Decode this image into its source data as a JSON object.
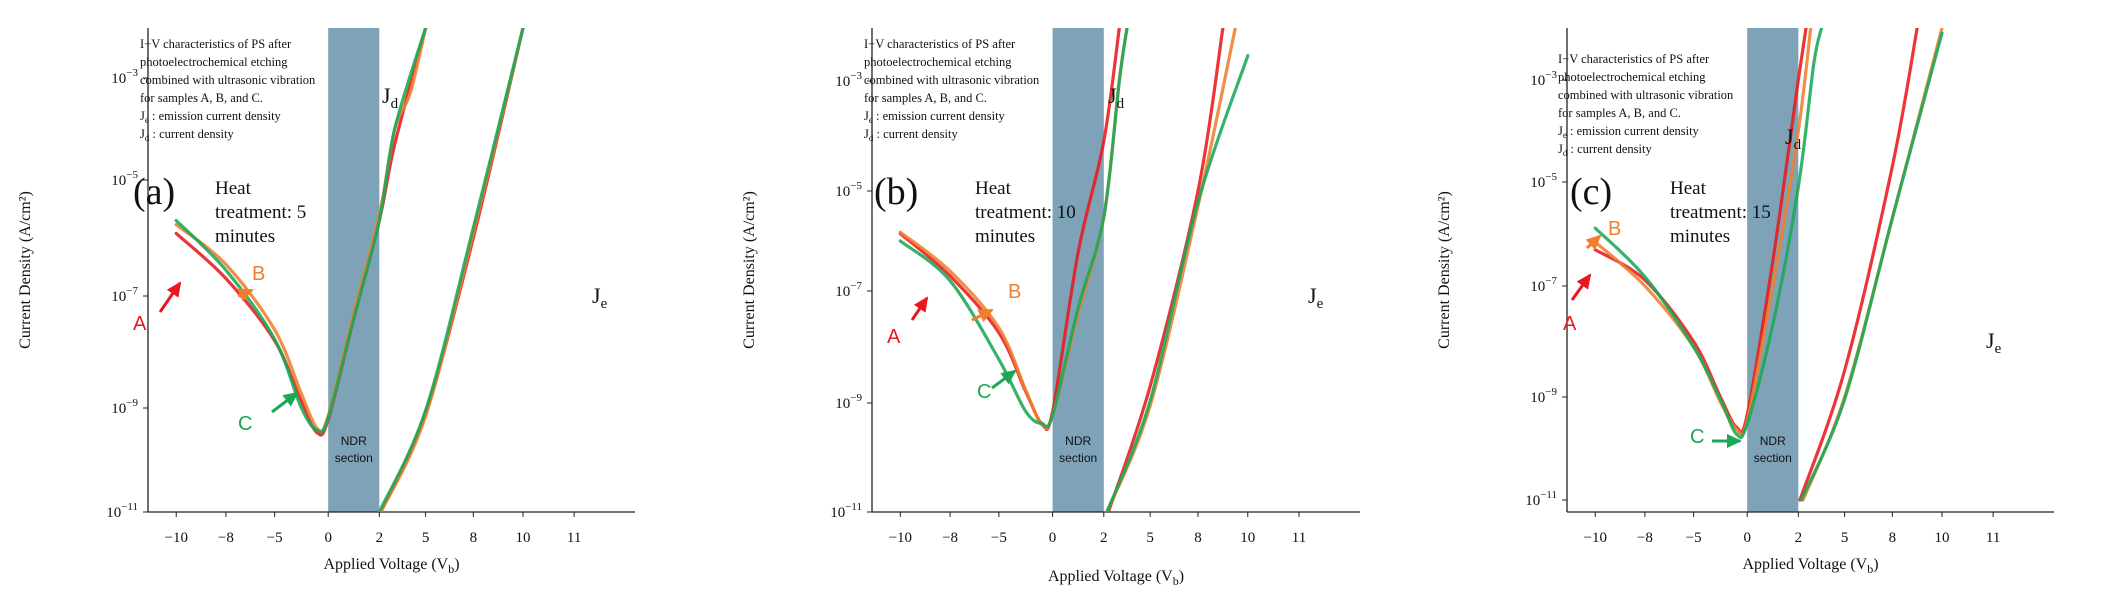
{
  "colors": {
    "A": "#e8191e",
    "B": "#ee7f2d",
    "C": "#1aa856",
    "ndr_fill": "#7ea3b9"
  },
  "shared": {
    "y_axis_title": "Current Density (A/cm²)",
    "x_axis_title_main": "Applied Voltage (V",
    "x_axis_title_sub": "b",
    "x_axis_title_close": ")",
    "y_tick_base": "10",
    "y_tick_exponents": [
      "−3",
      "−5",
      "−7",
      "−9",
      "−11"
    ],
    "x_ticks": [
      "−10",
      "−8",
      "−5",
      "0",
      "2",
      "5",
      "8",
      "10",
      "11"
    ],
    "ndr_line1": "NDR",
    "ndr_line2": "section",
    "jd_main": "J",
    "jd_sub": "d",
    "je_main": "J",
    "je_sub": "e",
    "description": [
      "I−V characteristics of PS after",
      "photoelectrochemical etching",
      "combined with ultrasonic vibration",
      "for samples A, B, and C."
    ],
    "desc_je_sub": "e",
    "desc_je_rest": " : emission current density",
    "desc_jd_sub": "d",
    "desc_jd_rest": " : current density",
    "desc_j": "J",
    "sample_labels": {
      "A": "A",
      "B": "B",
      "C": "C"
    }
  },
  "panels": [
    {
      "letter": "(a)",
      "heat": [
        "Heat",
        "treatment: 5",
        "minutes"
      ]
    },
    {
      "letter": "(b)",
      "heat": [
        "Heat",
        "treatment: 10",
        "minutes"
      ]
    },
    {
      "letter": "(c)",
      "heat": [
        "Heat",
        "treatment: 15",
        "minutes"
      ]
    }
  ],
  "chart_data": [
    {
      "type": "line",
      "title": "Heat treatment: 5 minutes",
      "panel": "(a)",
      "xlabel": "Applied Voltage (Vb)",
      "ylabel": "Current Density (A/cm²)",
      "yscale": "log",
      "ylim": [
        1e-11,
        0.01
      ],
      "x_tick_labels": [
        "−10",
        "−8",
        "−5",
        "0",
        "2",
        "5",
        "8",
        "10",
        "11"
      ],
      "ndr_section": [
        "0",
        "2"
      ],
      "series": [
        {
          "name": "A (Jd)",
          "points": [
            [
              -10,
              1.2e-06
            ],
            [
              -8,
              2e-07
            ],
            [
              -5,
              1.6e-08
            ],
            [
              -2.5,
              1.3e-09
            ],
            [
              -1,
              3.3e-10
            ],
            [
              0,
              6e-10
            ],
            [
              1,
              4e-08
            ],
            [
              2,
              2e-06
            ],
            [
              3,
              5e-05
            ],
            [
              5,
              0.01
            ]
          ]
        },
        {
          "name": "B (Jd)",
          "points": [
            [
              -10,
              1.7e-06
            ],
            [
              -8,
              3.5e-07
            ],
            [
              -5,
              2.5e-08
            ],
            [
              -2.5,
              1.8e-09
            ],
            [
              -1,
              4e-10
            ],
            [
              0,
              7e-10
            ],
            [
              1,
              5e-08
            ],
            [
              2,
              2.5e-06
            ],
            [
              3,
              0.0001
            ],
            [
              4,
              0.0005
            ],
            [
              5,
              0.01
            ]
          ]
        },
        {
          "name": "C (Jd)",
          "points": [
            [
              -10,
              2e-06
            ],
            [
              -8,
              2.8e-07
            ],
            [
              -5,
              1.7e-08
            ],
            [
              -2.5,
              1e-09
            ],
            [
              -1,
              3.7e-10
            ],
            [
              0,
              6.5e-10
            ],
            [
              1,
              4e-08
            ],
            [
              2,
              2e-06
            ],
            [
              3,
              0.0001
            ],
            [
              5,
              0.01
            ]
          ]
        },
        {
          "name": "A (Je)",
          "points": [
            [
              2.1,
              1e-11
            ],
            [
              5,
              8e-10
            ],
            [
              8,
              1e-06
            ],
            [
              10,
              0.01
            ]
          ]
        },
        {
          "name": "B (Je)",
          "points": [
            [
              2.1,
              1e-11
            ],
            [
              5,
              7e-10
            ],
            [
              8,
              1.2e-06
            ],
            [
              10,
              0.01
            ]
          ]
        },
        {
          "name": "C (Je)",
          "points": [
            [
              2,
              1e-11
            ],
            [
              5,
              9e-10
            ],
            [
              8,
              1.5e-06
            ],
            [
              10,
              0.01
            ]
          ]
        }
      ]
    },
    {
      "type": "line",
      "title": "Heat treatment: 10 minutes",
      "panel": "(b)",
      "xlabel": "Applied Voltage (Vb)",
      "ylabel": "Current Density (A/cm²)",
      "yscale": "log",
      "ylim": [
        1e-11,
        0.01
      ],
      "x_tick_labels": [
        "−10",
        "−8",
        "−5",
        "0",
        "2",
        "5",
        "8",
        "10",
        "11"
      ],
      "ndr_section": [
        "0",
        "2"
      ],
      "series": [
        {
          "name": "A (Jd)",
          "points": [
            [
              -10,
              1.4e-06
            ],
            [
              -8,
              2e-07
            ],
            [
              -5,
              1.8e-08
            ],
            [
              -2.5,
              1.6e-09
            ],
            [
              -1,
              4.2e-10
            ],
            [
              0,
              7e-10
            ],
            [
              1,
              6e-07
            ],
            [
              2,
              8e-05
            ],
            [
              3,
              0.01
            ]
          ]
        },
        {
          "name": "B (Jd)",
          "points": [
            [
              -10,
              1.5e-06
            ],
            [
              -8,
              2.5e-07
            ],
            [
              -5,
              2.2e-08
            ],
            [
              -2.5,
              1.7e-09
            ],
            [
              -1,
              4e-10
            ],
            [
              0,
              6e-10
            ],
            [
              1,
              4e-08
            ],
            [
              2,
              3e-06
            ],
            [
              3,
              0.001
            ],
            [
              3.5,
              0.01
            ]
          ]
        },
        {
          "name": "C (Jd)",
          "points": [
            [
              -10,
              1e-06
            ],
            [
              -8,
              1.6e-07
            ],
            [
              -5,
              6e-09
            ],
            [
              -2.5,
              7e-10
            ],
            [
              -1,
              4.2e-10
            ],
            [
              0,
              6e-10
            ],
            [
              1,
              5e-08
            ],
            [
              2,
              3e-06
            ],
            [
              3,
              0.001
            ],
            [
              3.5,
              0.01
            ]
          ]
        },
        {
          "name": "A (Je)",
          "points": [
            [
              2.3,
              1e-11
            ],
            [
              5,
              2e-09
            ],
            [
              8,
              1e-05
            ],
            [
              9,
              0.01
            ]
          ]
        },
        {
          "name": "B (Je)",
          "points": [
            [
              2.2,
              1e-11
            ],
            [
              5,
              9e-10
            ],
            [
              8,
              5e-06
            ],
            [
              9.5,
              0.01
            ]
          ]
        },
        {
          "name": "C (Je)",
          "points": [
            [
              2.2,
              1e-11
            ],
            [
              5,
              1.1e-09
            ],
            [
              8,
              6e-06
            ],
            [
              10,
              0.003
            ]
          ]
        }
      ]
    },
    {
      "type": "line",
      "title": "Heat treatment: 15 minutes",
      "panel": "(c)",
      "xlabel": "Applied Voltage (Vb)",
      "ylabel": "Current Density (A/cm²)",
      "yscale": "log",
      "ylim": [
        1e-11,
        0.01
      ],
      "x_tick_labels": [
        "−10",
        "−8",
        "−5",
        "0",
        "2",
        "5",
        "8",
        "10",
        "11"
      ],
      "ndr_section": [
        "0",
        "2"
      ],
      "series": [
        {
          "name": "A (Jd)",
          "points": [
            [
              -10,
              5e-07
            ],
            [
              -8,
              1.3e-07
            ],
            [
              -5,
              1e-08
            ],
            [
              -2.5,
              1e-09
            ],
            [
              -1,
              2.6e-10
            ],
            [
              0,
              4.5e-10
            ],
            [
              1,
              3e-07
            ],
            [
              2,
              0.001
            ],
            [
              2.5,
              0.01
            ]
          ]
        },
        {
          "name": "B (Jd)",
          "points": [
            [
              -10,
              7e-07
            ],
            [
              -8,
              1e-07
            ],
            [
              -5,
              8e-09
            ],
            [
              -2.5,
              8e-10
            ],
            [
              -1,
              2.4e-10
            ],
            [
              0,
              3.5e-10
            ],
            [
              1,
              1e-07
            ],
            [
              2,
              0.0001
            ],
            [
              2.8,
              0.01
            ]
          ]
        },
        {
          "name": "C (Jd)",
          "points": [
            [
              -10,
              1.3e-06
            ],
            [
              -8,
              1.5e-07
            ],
            [
              -5,
              8e-09
            ],
            [
              -2.5,
              9e-10
            ],
            [
              -1,
              1.9e-10
            ],
            [
              0,
              3e-10
            ],
            [
              1,
              2e-08
            ],
            [
              2,
              8e-06
            ],
            [
              3,
              0.002
            ],
            [
              3.5,
              0.01
            ]
          ]
        },
        {
          "name": "A (Je)",
          "points": [
            [
              2.1,
              1e-11
            ],
            [
              5,
              3e-09
            ],
            [
              8,
              2e-05
            ],
            [
              9,
              0.01
            ]
          ]
        },
        {
          "name": "B (Je)",
          "points": [
            [
              2.3,
              1e-11
            ],
            [
              5,
              1e-09
            ],
            [
              8,
              2e-06
            ],
            [
              10,
              0.01
            ]
          ]
        },
        {
          "name": "C (Je)",
          "points": [
            [
              2.2,
              1e-11
            ],
            [
              5,
              9e-10
            ],
            [
              8,
              2e-06
            ],
            [
              10,
              0.008
            ]
          ]
        }
      ]
    }
  ]
}
